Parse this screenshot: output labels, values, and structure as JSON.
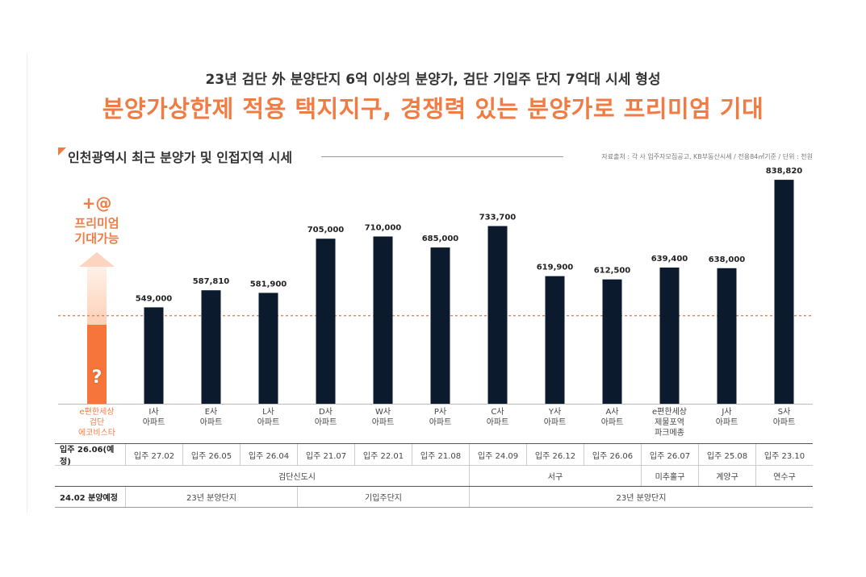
{
  "header": {
    "subtitle": "23년 검단 外 분양단지 6억 이상의 분양가, 검단 기입주 단지 7억대 시세 형성",
    "title": "분양가상한제 적용 택지지구, 경쟁력 있는 분양가로 프리미엄 기대"
  },
  "section": {
    "title": "인천광역시 최근 분양가 및 인접지역 시세",
    "source": "자료출처 : 각 사 입주자모집공고, KB부동산시세 / 전용84㎡기준 / 단위 : 천원"
  },
  "highlight": {
    "plus": "+@",
    "premium_line1": "프리미엄",
    "premium_line2": "기대가능",
    "question": "?",
    "label_lines": [
      "e편한세상",
      "검단",
      "에코비스타"
    ]
  },
  "colors": {
    "accent": "#f07c44",
    "bar": "#0c1a2e",
    "highlight_bar": "#f5753a",
    "reference_line": "#e07a4a"
  },
  "chart_data": {
    "type": "bar",
    "categories": [
      "I사 아파트",
      "E사 아파트",
      "L사 아파트",
      "D사 아파트",
      "W사 아파트",
      "P사 아파트",
      "C사 아파트",
      "Y사 아파트",
      "A사 아파트",
      "e편한세상 제물포역 파크메종",
      "J사 아파트",
      "S사 아파트"
    ],
    "category_lines": [
      [
        "I사",
        "아파트"
      ],
      [
        "E사",
        "아파트"
      ],
      [
        "L사",
        "아파트"
      ],
      [
        "D사",
        "아파트"
      ],
      [
        "W사",
        "아파트"
      ],
      [
        "P사",
        "아파트"
      ],
      [
        "C사",
        "아파트"
      ],
      [
        "Y사",
        "아파트"
      ],
      [
        "A사",
        "아파트"
      ],
      [
        "e편한세상",
        "제물포역",
        "파크메종"
      ],
      [
        "J사",
        "아파트"
      ],
      [
        "S사",
        "아파트"
      ]
    ],
    "values": [
      549000,
      587810,
      581900,
      705000,
      710000,
      685000,
      733700,
      619900,
      612500,
      639400,
      638000,
      838820
    ],
    "value_labels": [
      "549,000",
      "587,810",
      "581,900",
      "705,000",
      "710,000",
      "685,000",
      "733,700",
      "619,900",
      "612,500",
      "639,400",
      "638,000",
      "838,820"
    ],
    "reference_value": 530000,
    "ylim": [
      330000,
      850000
    ]
  },
  "table": {
    "move_in": {
      "head": "입주 26.06(예정)",
      "cells": [
        "입주 27.02",
        "입주 26.05",
        "입주 26.04",
        "입주 21.07",
        "입주 22.01",
        "입주 21.08",
        "입주 24.09",
        "입주 26.12",
        "입주 26.06",
        "입주 26.07",
        "입주 25.08",
        "입주 23.10"
      ]
    },
    "region": {
      "groups": [
        {
          "label": "검단신도시",
          "span": 6
        },
        {
          "label": "서구",
          "span": 3
        },
        {
          "label": "미추홀구",
          "span": 1
        },
        {
          "label": "계양구",
          "span": 1
        },
        {
          "label": "연수구",
          "span": 1
        }
      ]
    },
    "sale": {
      "head": "24.02 분양예정",
      "groups": [
        {
          "label": "23년 분양단지",
          "span": 3
        },
        {
          "label": "기입주단지",
          "span": 3
        },
        {
          "label": "23년 분양단지",
          "span": 6
        }
      ]
    }
  }
}
